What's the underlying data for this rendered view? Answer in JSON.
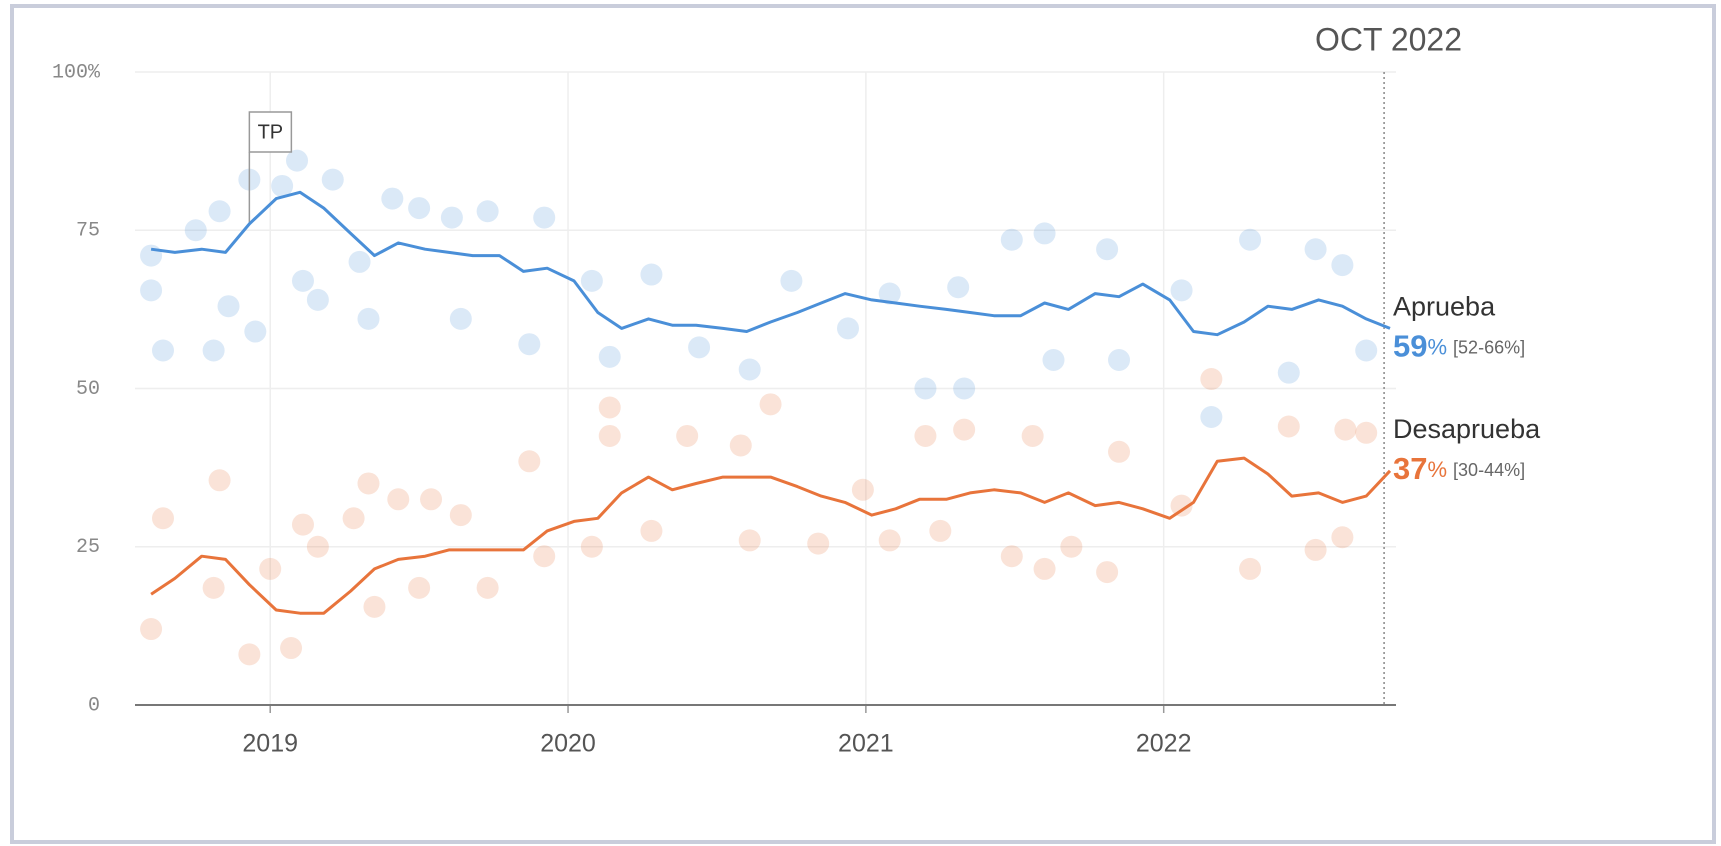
{
  "chart_data": {
    "type": "line",
    "date_marker": {
      "label": "OCT 2022",
      "x": 2022.74
    },
    "annotation": {
      "text": "TP",
      "x": 2018.93
    },
    "xlim": [
      2018.546,
      2022.78
    ],
    "xticks": [
      2019,
      2020,
      2021,
      2022
    ],
    "ylim": [
      0,
      100
    ],
    "yticks": [
      0,
      25,
      50,
      75,
      {
        "value": 100,
        "label": "100%"
      }
    ],
    "grid": true,
    "x": [
      2018.6,
      2018.68,
      2018.77,
      2018.85,
      2018.93,
      2019.02,
      2019.1,
      2019.18,
      2019.27,
      2019.35,
      2019.43,
      2019.52,
      2019.6,
      2019.68,
      2019.77,
      2019.85,
      2019.93,
      2020.02,
      2020.1,
      2020.18,
      2020.27,
      2020.35,
      2020.43,
      2020.52,
      2020.6,
      2020.68,
      2020.77,
      2020.85,
      2020.93,
      2021.02,
      2021.1,
      2021.18,
      2021.27,
      2021.35,
      2021.43,
      2021.52,
      2021.6,
      2021.68,
      2021.77,
      2021.85,
      2021.93,
      2022.02,
      2022.1,
      2022.18,
      2022.27,
      2022.35,
      2022.43,
      2022.52,
      2022.6,
      2022.68,
      2022.76
    ],
    "series": [
      {
        "name": "Aprueba",
        "color": "#4a8fd8",
        "end_value": 59,
        "end_unit": "%",
        "end_range": "[52-66%]",
        "values": [
          72,
          71.5,
          72,
          71.5,
          76,
          80,
          81,
          78.5,
          74.5,
          71,
          73,
          72,
          71.5,
          71,
          71,
          68.5,
          69,
          67,
          62,
          59.5,
          61,
          60,
          60,
          59.5,
          59,
          60.5,
          62,
          63.5,
          65,
          64,
          63.5,
          63,
          62.5,
          62,
          61.5,
          61.5,
          63.5,
          62.5,
          65,
          64.5,
          66.5,
          64,
          59,
          58.5,
          60.5,
          63,
          62.5,
          64,
          63,
          61,
          59.5
        ],
        "polls": {
          "x": [
            2018.6,
            2018.6,
            2018.64,
            2018.75,
            2018.81,
            2018.83,
            2018.86,
            2018.93,
            2018.95,
            2019.04,
            2019.09,
            2019.11,
            2019.16,
            2019.21,
            2019.3,
            2019.33,
            2019.41,
            2019.5,
            2019.61,
            2019.64,
            2019.73,
            2019.87,
            2019.92,
            2020.08,
            2020.14,
            2020.28,
            2020.44,
            2020.61,
            2020.75,
            2020.94,
            2021.08,
            2021.2,
            2021.33,
            2021.31,
            2021.49,
            2021.6,
            2021.63,
            2021.81,
            2021.85,
            2022.06,
            2022.16,
            2022.29,
            2022.42,
            2022.51,
            2022.6,
            2022.68
          ],
          "values": [
            71,
            65.5,
            56,
            75,
            56,
            78,
            63,
            83,
            59,
            82,
            86,
            67,
            64,
            83,
            70,
            61,
            80,
            78.5,
            77,
            61,
            78,
            57,
            77,
            67,
            55,
            68,
            56.5,
            53,
            67,
            59.5,
            65,
            50,
            50,
            66,
            73.5,
            74.5,
            54.5,
            72,
            54.5,
            65.5,
            45.5,
            73.5,
            52.5,
            72,
            69.5,
            56
          ]
        }
      },
      {
        "name": "Desaprueba",
        "color": "#e8743b",
        "end_value": 37,
        "end_unit": "%",
        "end_range": "[30-44%]",
        "values": [
          17.5,
          20,
          23.5,
          23,
          19,
          15,
          14.5,
          14.5,
          18,
          21.5,
          23,
          23.5,
          24.5,
          24.5,
          24.5,
          24.5,
          27.5,
          29,
          29.5,
          33.5,
          36,
          34,
          35,
          36,
          36,
          36,
          34.5,
          33,
          32,
          30,
          31,
          32.5,
          32.5,
          33.5,
          34,
          33.5,
          32,
          33.5,
          31.5,
          32,
          31,
          29.5,
          32,
          38.5,
          39,
          36.5,
          33,
          33.5,
          32,
          33,
          37
        ],
        "polls": {
          "x": [
            2018.6,
            2018.64,
            2018.83,
            2018.81,
            2018.93,
            2019.0,
            2019.07,
            2019.11,
            2019.16,
            2019.28,
            2019.33,
            2019.35,
            2019.43,
            2019.5,
            2019.54,
            2019.64,
            2019.73,
            2019.87,
            2019.92,
            2020.08,
            2020.14,
            2020.14,
            2020.28,
            2020.4,
            2020.58,
            2020.68,
            2020.61,
            2020.84,
            2020.99,
            2021.08,
            2021.2,
            2021.33,
            2021.25,
            2021.49,
            2021.56,
            2021.6,
            2021.69,
            2021.81,
            2021.85,
            2022.06,
            2022.16,
            2022.29,
            2022.42,
            2022.51,
            2022.6,
            2022.61,
            2022.68
          ],
          "values": [
            12,
            29.5,
            35.5,
            18.5,
            8,
            21.5,
            9,
            28.5,
            25,
            29.5,
            35,
            15.5,
            32.5,
            18.5,
            32.5,
            30,
            18.5,
            38.5,
            23.5,
            25,
            42.5,
            47,
            27.5,
            42.5,
            41,
            47.5,
            26,
            25.5,
            34,
            26,
            42.5,
            43.5,
            27.5,
            23.5,
            42.5,
            21.5,
            25,
            21,
            40,
            31.5,
            51.5,
            21.5,
            44,
            24.5,
            26.5,
            43.5,
            43
          ]
        }
      }
    ]
  }
}
